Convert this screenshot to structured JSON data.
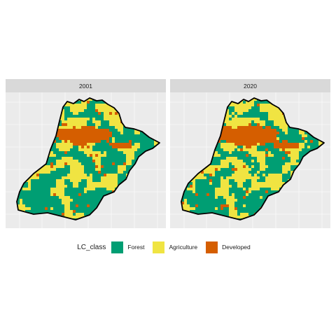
{
  "facets": [
    {
      "label": "2001",
      "growth": 0
    },
    {
      "label": "2020",
      "growth": 1
    }
  ],
  "legend": {
    "title": "LC_class",
    "items": [
      {
        "label": "Forest",
        "color": "#009E73"
      },
      {
        "label": "Agriculture",
        "color": "#F0E442"
      },
      {
        "label": "Developed",
        "color": "#D55E00"
      }
    ]
  },
  "colors": {
    "panel_background": "#EBEBEB",
    "grid": "#FFFFFF",
    "strip": "#D9D9D9",
    "boundary": "#000000"
  }
}
